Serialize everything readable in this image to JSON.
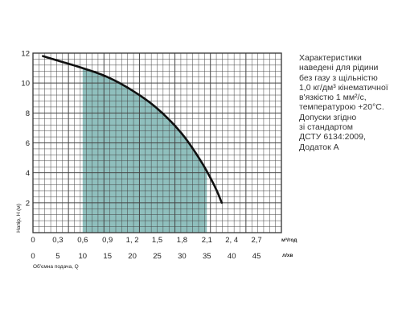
{
  "chart_data": {
    "type": "area",
    "ylabel": "Напір, H (м)",
    "xlabel": "Об'ємна подача, Q",
    "x_unit_primary": "м³/год",
    "x_unit_secondary": "л/хв",
    "ylim": [
      0,
      12
    ],
    "y_ticks": [
      "2",
      "4",
      "6",
      "8",
      "10",
      "12"
    ],
    "x_ticks_primary": [
      "0",
      "0,3",
      "0,6",
      "0,9",
      "1, 2",
      "1,5",
      "1,8",
      "2,1",
      "2, 4",
      "2,7"
    ],
    "x_ticks_primary_values": [
      0,
      0.3,
      0.6,
      0.9,
      1.2,
      1.5,
      1.8,
      2.1,
      2.4,
      2.7
    ],
    "x_ticks_secondary": [
      "0",
      "5",
      "10",
      "15",
      "20",
      "25",
      "30",
      "35",
      "40",
      "45"
    ],
    "x_ticks_secondary_values": [
      0,
      5,
      10,
      15,
      20,
      25,
      30,
      35,
      40,
      45
    ],
    "xlim_l_per_min": [
      0,
      50
    ],
    "grid": true,
    "series": [
      {
        "x_l_per_min": [
          2,
          5,
          10,
          15,
          20,
          25,
          30,
          33,
          35,
          37,
          38
        ],
        "y_head_m": [
          11.8,
          11.5,
          11.0,
          10.4,
          9.5,
          8.3,
          6.6,
          5.2,
          4.1,
          2.8,
          2.0
        ]
      }
    ],
    "working_range_l_per_min": [
      10,
      35
    ],
    "colors": {
      "area": "#8fbfbd",
      "curve": "#111111",
      "grid": "#444444"
    }
  },
  "note": {
    "lines": [
      "Характеристики",
      "наведені для рідини",
      "без газу з щільністю",
      "1,0 кг/дм³ кінематичної",
      "в'язкістю 1 мм²/с,",
      "температурою +20°С.",
      "Допуски згідно",
      "зі стандартом",
      "ДСТУ 6134:2009,",
      "Додаток А"
    ]
  }
}
